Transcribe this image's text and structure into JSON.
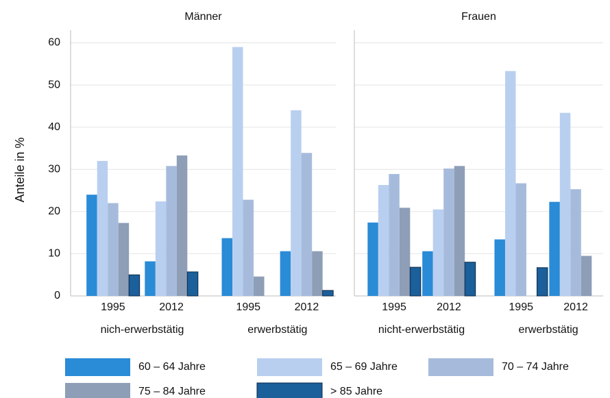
{
  "chart_data": {
    "type": "bar",
    "y_label": "Anteile in %",
    "ylim": [
      0,
      63
    ],
    "yticks": [
      0,
      10,
      20,
      30,
      40,
      50,
      60
    ],
    "grid": true,
    "panels": [
      {
        "title": "Männer",
        "categories": [
          "1995",
          "2012",
          "1995",
          "2012"
        ],
        "groups": [
          "nich-erwerbstätig",
          "erwerbstätig"
        ]
      },
      {
        "title": "Frauen",
        "categories": [
          "1995",
          "2012",
          "1995",
          "2012"
        ],
        "groups": [
          "nicht-erwerbstätig",
          "erwerbstätig"
        ]
      }
    ],
    "series": [
      {
        "name": "60 – 64 Jahre",
        "color": "#2a8bd6",
        "values": [
          24.0,
          8.2,
          13.7,
          10.6,
          17.4,
          10.6,
          13.4,
          22.3
        ]
      },
      {
        "name": "65 – 69 Jahre",
        "color": "#b9cff0",
        "values": [
          32.0,
          22.4,
          59.0,
          44.0,
          26.3,
          20.5,
          53.3,
          43.4
        ]
      },
      {
        "name": "70 – 74 Jahre",
        "color": "#a6bbdc",
        "values": [
          22.0,
          30.8,
          22.8,
          33.9,
          28.9,
          30.2,
          26.7,
          25.3
        ]
      },
      {
        "name": "75 – 84 Jahre",
        "color": "#8e9eb6",
        "values": [
          17.3,
          33.3,
          4.6,
          10.6,
          20.9,
          30.8,
          null,
          9.5
        ]
      },
      {
        "name": "> 85 Jahre",
        "color": "#1b5f9b",
        "values": [
          5.0,
          5.7,
          null,
          1.3,
          6.8,
          8.0,
          6.7,
          null
        ]
      }
    ]
  }
}
